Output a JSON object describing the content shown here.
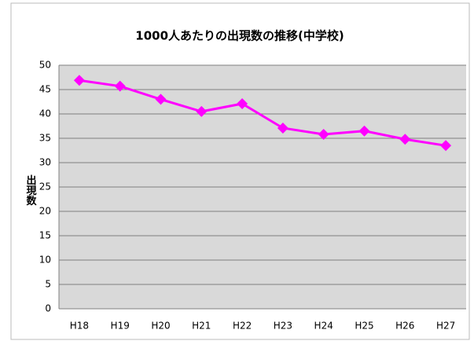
{
  "chart_data": {
    "type": "line",
    "title": "1000人あたりの出現数の推移(中学校)",
    "y_label": "出現数",
    "categories": [
      "H18",
      "H19",
      "H20",
      "H21",
      "H22",
      "H23",
      "H24",
      "H25",
      "H26",
      "H27"
    ],
    "values": [
      46.9,
      45.7,
      43.0,
      40.5,
      42.1,
      37.1,
      35.8,
      36.5,
      34.8,
      33.5
    ],
    "color": "#ff00ff",
    "ylim": [
      0,
      50
    ],
    "yticks": [
      0,
      5,
      10,
      15,
      20,
      25,
      30,
      35,
      40,
      45,
      50
    ],
    "grid": true
  }
}
